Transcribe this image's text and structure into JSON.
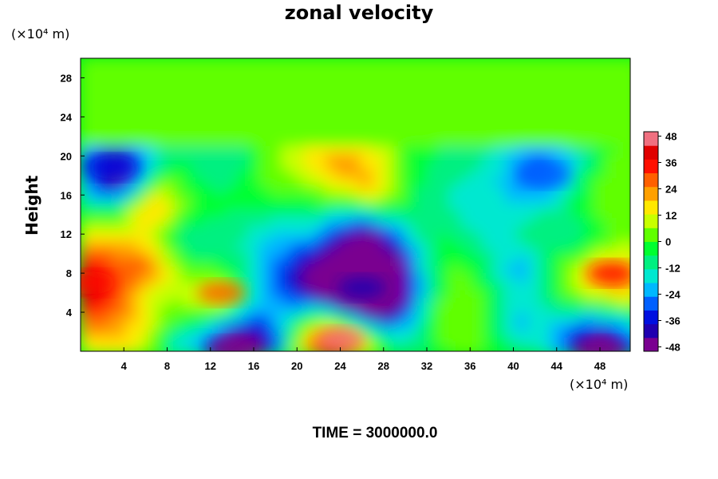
{
  "chart_data": {
    "type": "heatmap",
    "title": "zonal velocity",
    "ylabel": "Height",
    "xlabel": "",
    "x_unit": "(×10⁴ m)",
    "y_unit": "(×10⁴ m)",
    "x_ticks": [
      4,
      8,
      12,
      16,
      20,
      24,
      28,
      32,
      36,
      40,
      44,
      48
    ],
    "y_ticks": [
      4,
      8,
      12,
      16,
      20,
      24,
      28
    ],
    "xlim": [
      0,
      50.8
    ],
    "ylim": [
      0,
      30
    ],
    "colorbar": {
      "ticks": [
        48,
        36,
        24,
        12,
        0,
        -12,
        -24,
        -36,
        -48
      ],
      "range": [
        -50,
        50
      ],
      "colors": [
        "#7a0090",
        "#2000b0",
        "#0010e0",
        "#0060ff",
        "#00b8ff",
        "#00e8d0",
        "#00f080",
        "#00ff30",
        "#60ff00",
        "#c8ff00",
        "#ffe800",
        "#ffa000",
        "#ff6000",
        "#ff1000",
        "#e00000",
        "#f07080"
      ]
    },
    "field_features": [
      {
        "x": 26,
        "y": 6.5,
        "value": -40,
        "description": "negative core"
      },
      {
        "x": 24,
        "y": 1.2,
        "value": 48,
        "description": "positive core near ground"
      },
      {
        "x": 14,
        "y": 0.2,
        "value": -48,
        "description": "negative near ground"
      },
      {
        "x": 48,
        "y": 0.2,
        "value": -48,
        "description": "negative near ground"
      },
      {
        "x": 1,
        "y": 7,
        "value": 36,
        "description": "positive left"
      },
      {
        "x": 13,
        "y": 6,
        "value": 30,
        "description": "positive"
      },
      {
        "x": 49,
        "y": 8,
        "value": 36,
        "description": "positive right"
      },
      {
        "x": 3,
        "y": 18.8,
        "value": -36,
        "description": "negative band"
      },
      {
        "x": 43,
        "y": 18,
        "value": -30,
        "description": "negative"
      }
    ]
  },
  "footer": {
    "time_label": "TIME = 3000000.0"
  }
}
